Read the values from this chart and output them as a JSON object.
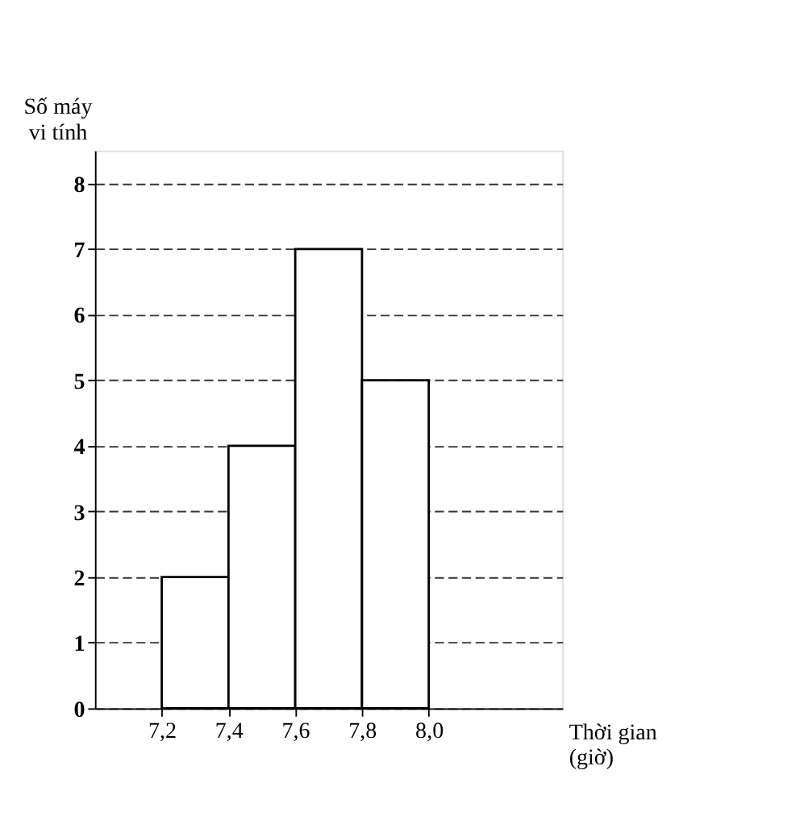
{
  "chart_data": {
    "type": "histogram",
    "xlabel": "Thời gian (giờ)",
    "ylabel": "Số máy vi tính",
    "bins": [
      7.2,
      7.4,
      7.6,
      7.8,
      8.0
    ],
    "values": [
      2,
      4,
      7,
      5
    ],
    "color": "#ffffff",
    "xlim": [
      7.0,
      8.4
    ],
    "xticks": [
      {
        "value": 7.2,
        "label": "7,2"
      },
      {
        "value": 7.4,
        "label": "7,4"
      },
      {
        "value": 7.6,
        "label": "7,6"
      },
      {
        "value": 7.8,
        "label": "7,8"
      },
      {
        "value": 8.0,
        "label": "8,0"
      }
    ],
    "ylim": [
      0,
      8.5
    ],
    "yticks": [
      0,
      1,
      2,
      3,
      4,
      5,
      6,
      7,
      8
    ],
    "grid": "y"
  }
}
